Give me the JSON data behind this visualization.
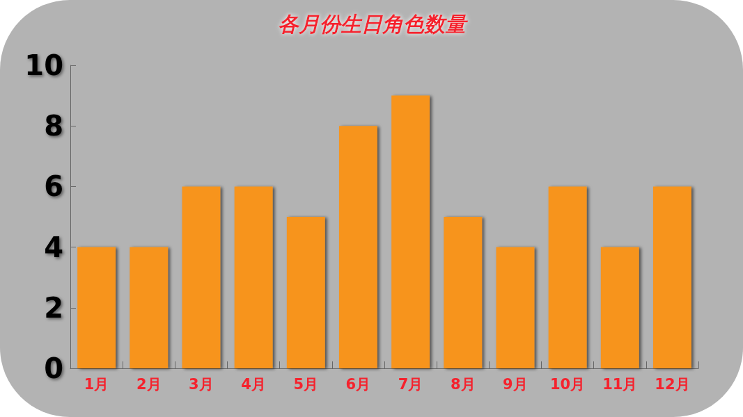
{
  "chart_data": {
    "type": "bar",
    "title": "各月份生日角色数量",
    "categories": [
      "1月",
      "2月",
      "3月",
      "4月",
      "5月",
      "6月",
      "7月",
      "8月",
      "9月",
      "10月",
      "11月",
      "12月"
    ],
    "values": [
      4,
      4,
      6,
      6,
      5,
      8,
      9,
      5,
      4,
      6,
      4,
      6
    ],
    "color": "#f7941d",
    "ylim": [
      0,
      10
    ],
    "yticks": [
      0,
      2,
      4,
      6,
      8,
      10
    ],
    "grid": false
  }
}
